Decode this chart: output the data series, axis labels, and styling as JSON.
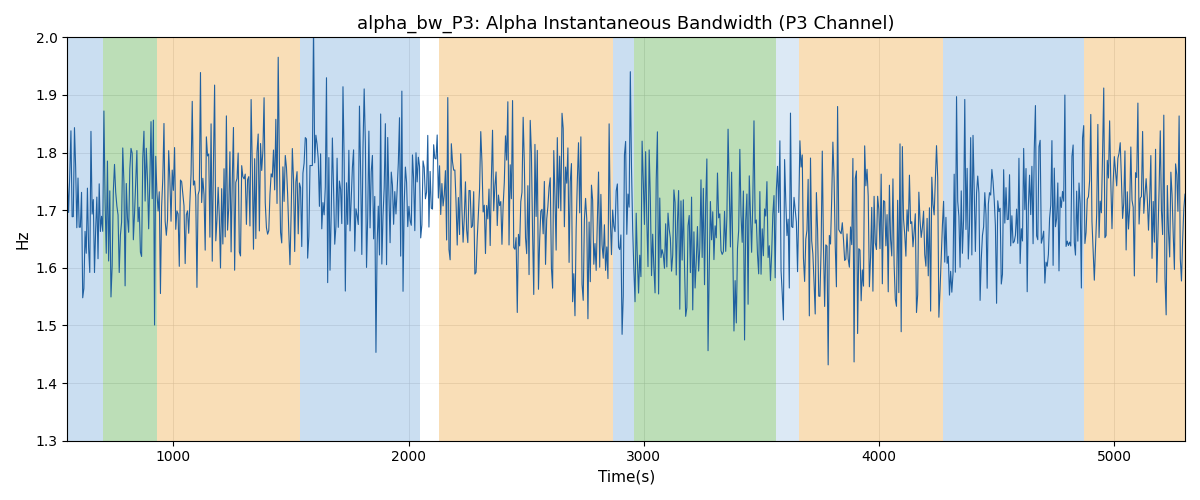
{
  "title": "alpha_bw_P3: Alpha Instantaneous Bandwidth (P3 Channel)",
  "xlabel": "Time(s)",
  "ylabel": "Hz",
  "xlim": [
    550,
    5300
  ],
  "ylim": [
    1.3,
    2.0
  ],
  "line_color": "#2060a0",
  "line_width": 0.8,
  "grid_color": "#aaaaaa",
  "background_bands": [
    {
      "xmin": 550,
      "xmax": 700,
      "color": "#a8c8e8",
      "alpha": 0.6
    },
    {
      "xmin": 700,
      "xmax": 930,
      "color": "#90c888",
      "alpha": 0.6
    },
    {
      "xmin": 930,
      "xmax": 1540,
      "color": "#f5c888",
      "alpha": 0.6
    },
    {
      "xmin": 1540,
      "xmax": 2050,
      "color": "#a8c8e8",
      "alpha": 0.6
    },
    {
      "xmin": 2050,
      "xmax": 2130,
      "color": "#ffffff",
      "alpha": 0.8
    },
    {
      "xmin": 2130,
      "xmax": 2870,
      "color": "#f5c888",
      "alpha": 0.6
    },
    {
      "xmin": 2870,
      "xmax": 2960,
      "color": "#a8c8e8",
      "alpha": 0.6
    },
    {
      "xmin": 2960,
      "xmax": 3090,
      "color": "#90c888",
      "alpha": 0.6
    },
    {
      "xmin": 3090,
      "xmax": 3560,
      "color": "#90c888",
      "alpha": 0.6
    },
    {
      "xmin": 3560,
      "xmax": 3660,
      "color": "#a8c8e8",
      "alpha": 0.4
    },
    {
      "xmin": 3660,
      "xmax": 4270,
      "color": "#f5c888",
      "alpha": 0.6
    },
    {
      "xmin": 4270,
      "xmax": 4870,
      "color": "#a8c8e8",
      "alpha": 0.6
    },
    {
      "xmin": 4870,
      "xmax": 5300,
      "color": "#f5c888",
      "alpha": 0.6
    }
  ],
  "seed": 42,
  "x_start": 550,
  "x_end": 5300,
  "n_points": 950,
  "mean": 1.695,
  "std": 0.085,
  "title_fontsize": 13,
  "tick_fontsize": 10,
  "label_fontsize": 11,
  "yticks": [
    1.3,
    1.4,
    1.5,
    1.6,
    1.7,
    1.8,
    1.9,
    2.0
  ],
  "xticks": [
    1000,
    2000,
    3000,
    4000,
    5000
  ]
}
